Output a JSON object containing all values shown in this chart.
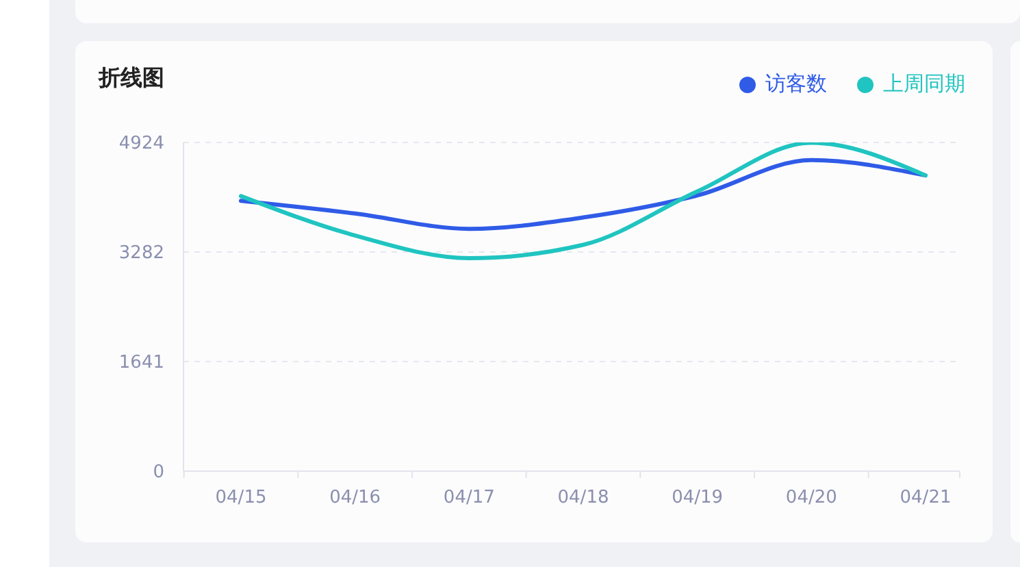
{
  "chart_data": {
    "type": "line",
    "title": "折线图",
    "categories": [
      "04/15",
      "04/16",
      "04/17",
      "04/18",
      "04/19",
      "04/20",
      "04/21"
    ],
    "series": [
      {
        "name": "访客数",
        "color": "#2f5be7",
        "values": [
          4050,
          3860,
          3630,
          3800,
          4130,
          4660,
          4430
        ]
      },
      {
        "name": "上周同期",
        "color": "#20c4c0",
        "values": [
          4120,
          3530,
          3190,
          3390,
          4190,
          4920,
          4430
        ]
      }
    ],
    "ylim": [
      0,
      4924
    ],
    "yticks": [
      0,
      1641,
      3282,
      4924
    ],
    "grid": "y",
    "legend": "top right"
  }
}
